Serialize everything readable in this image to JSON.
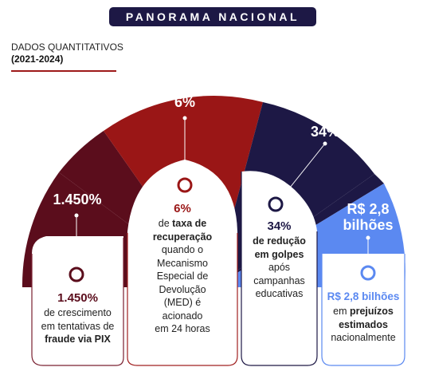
{
  "header": {
    "title": "PANORAMA NACIONAL"
  },
  "subtitle": {
    "line1": "DADOS QUANTITATIVOS",
    "line2": "(2021-2024)"
  },
  "colors": {
    "maroon": "#5b0d1c",
    "red": "#9a1616",
    "navy": "#1d1845",
    "blue": "#5b89f1"
  },
  "segments": [
    {
      "arch_label": "1.450%",
      "card_value": "1.450%",
      "card_line1": "de crescimento",
      "card_line2": "em tentativas de",
      "card_line3": "fraude via PIX"
    },
    {
      "arch_label": "6%",
      "card_value": "6%",
      "card_line1": "de",
      "card_bold1": "taxa de",
      "card_bold2": "recuperação",
      "card_line2": "quando o",
      "card_line3": "Mecanismo",
      "card_line4": "Especial de",
      "card_line5": "Devolução",
      "card_line6": "(MED) é",
      "card_line7": "acionado",
      "card_line8": "em 24 horas"
    },
    {
      "arch_label": "34%",
      "card_value": "34%",
      "card_bold1": "de redução",
      "card_bold2": "em golpes",
      "card_line1": "após",
      "card_line2": "campanhas",
      "card_line3": "educativas"
    },
    {
      "arch_label_line1": "R$ 2,8",
      "arch_label_line2": "bilhões",
      "card_value": "R$ 2,8 bilhões",
      "card_line1": "em",
      "card_bold1": "prejuízos",
      "card_bold2": "estimados",
      "card_line2": "nacionalmente"
    }
  ]
}
